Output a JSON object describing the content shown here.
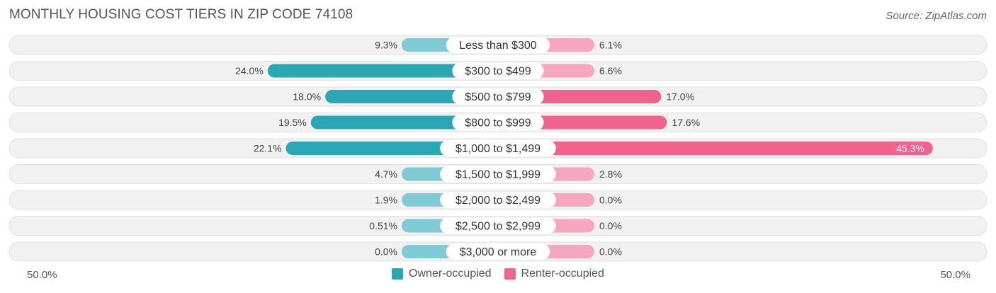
{
  "header": {
    "title": "MONTHLY HOUSING COST TIERS IN ZIP CODE 74108",
    "source": "Source: ZipAtlas.com"
  },
  "axis": {
    "left_label": "50.0%",
    "right_label": "50.0%"
  },
  "legend": {
    "owner_label": "Owner-occupied",
    "renter_label": "Renter-occupied"
  },
  "colors": {
    "owner": "#2ba6b5",
    "owner_light": "#7ecbd5",
    "renter": "#f0638f",
    "renter_light": "#f7a6bf",
    "row_bg": "#f1f1f1",
    "row_border": "#e0e0e0"
  },
  "chart_data": {
    "type": "bar",
    "orientation": "diverging-horizontal",
    "axis_max": 50.0,
    "categories": [
      "Less than $300",
      "$300 to $499",
      "$500 to $799",
      "$800 to $999",
      "$1,000 to $1,499",
      "$1,500 to $1,999",
      "$2,000 to $2,499",
      "$2,500 to $2,999",
      "$3,000 or more"
    ],
    "series": [
      {
        "name": "Owner-occupied",
        "values": [
          9.3,
          24.0,
          18.0,
          19.5,
          22.1,
          4.7,
          1.9,
          0.51,
          0.0
        ],
        "labels": [
          "9.3%",
          "24.0%",
          "18.0%",
          "19.5%",
          "22.1%",
          "4.7%",
          "1.9%",
          "0.51%",
          "0.0%"
        ]
      },
      {
        "name": "Renter-occupied",
        "values": [
          6.1,
          6.6,
          17.0,
          17.6,
          45.3,
          2.8,
          0.0,
          0.0,
          0.0
        ],
        "labels": [
          "6.1%",
          "6.6%",
          "17.0%",
          "17.6%",
          "45.3%",
          "2.8%",
          "0.0%",
          "0.0%",
          "0.0%"
        ]
      }
    ]
  }
}
